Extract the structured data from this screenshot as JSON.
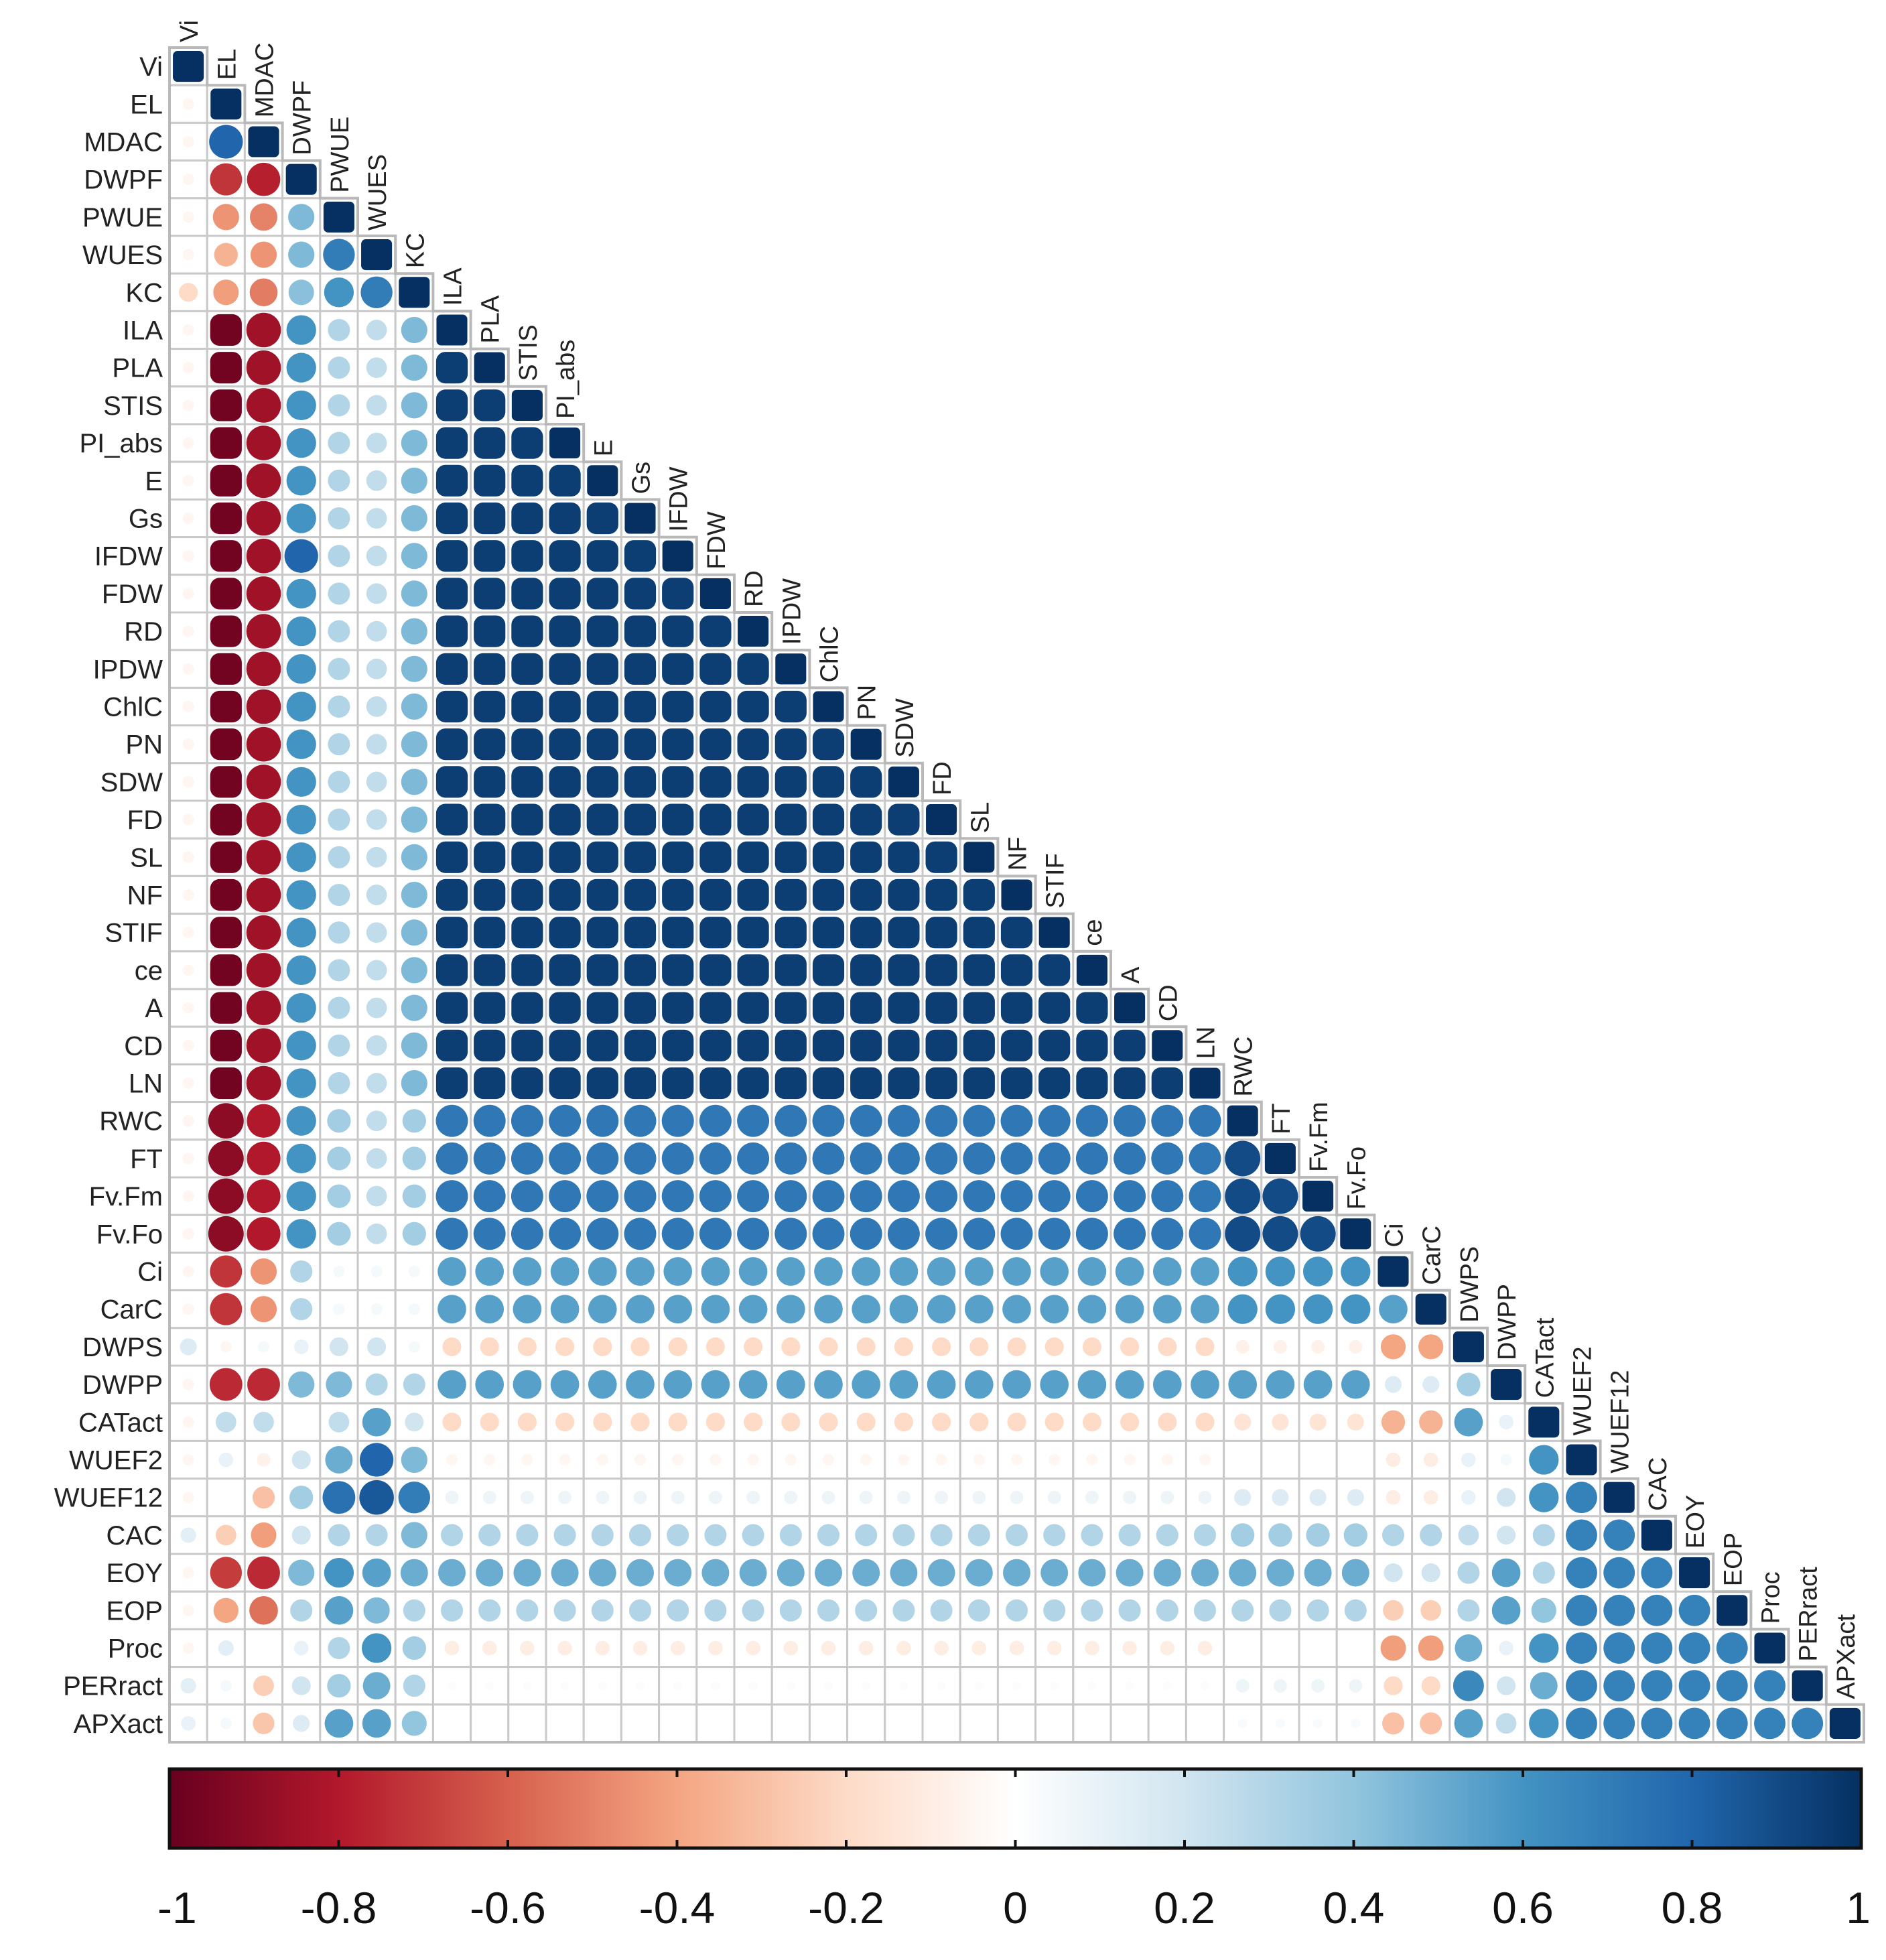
{
  "chart_data": {
    "type": "heatmap",
    "subtype": "correlation-matrix-lower-triangle",
    "title": "",
    "variables": [
      "Vi",
      "EL",
      "MDAC",
      "DWPF",
      "PWUE",
      "WUES",
      "KC",
      "ILA",
      "PLA",
      "STIS",
      "PI_abs",
      "E",
      "Gs",
      "IFDW",
      "FDW",
      "RD",
      "IPDW",
      "ChlC",
      "PN",
      "SDW",
      "FD",
      "SL",
      "NF",
      "STIF",
      "ce",
      "A",
      "CD",
      "LN",
      "RWC",
      "FT",
      "Fv.Fm",
      "Fv.Fo",
      "Ci",
      "CarC",
      "DWPS",
      "DWPP",
      "CATact",
      "WUEF2",
      "WUEF12",
      "CAC",
      "EOY",
      "EOP",
      "Proc",
      "PERract",
      "APXact"
    ],
    "groups": {
      "A": [
        "ILA",
        "PLA",
        "STIS",
        "PI_abs",
        "E",
        "Gs",
        "IFDW",
        "FDW",
        "RD",
        "IPDW",
        "ChlC",
        "PN",
        "SDW",
        "FD",
        "SL",
        "NF",
        "STIF",
        "ce",
        "A",
        "CD",
        "LN"
      ],
      "B": [
        "RWC",
        "FT",
        "Fv.Fm",
        "Fv.Fo"
      ],
      "C": [
        "Ci",
        "CarC"
      ],
      "S": [
        "WUEF2",
        "WUEF12",
        "CAC",
        "EOY",
        "EOP",
        "Proc",
        "PERract",
        "APXact"
      ]
    },
    "correlation_rules_estimated": {
      "Vi": {
        "default": -0.05,
        "DWPS": 0.15,
        "CAC": 0.12,
        "PERract": 0.12,
        "APXact": 0.1,
        "KC": -0.2
      },
      "EL": {
        "A": -0.97,
        "B": -0.9,
        "C": -0.72,
        "MDAC": 0.8,
        "DWPF": -0.72,
        "PWUE": -0.45,
        "WUES": -0.35,
        "KC": -0.42,
        "DWPP": -0.75,
        "EOY": -0.7,
        "EOP": -0.4,
        "CAC": -0.25,
        "CATact": 0.25,
        "DWPS": -0.05,
        "WUEF2": 0.1,
        "WUEF12": 0.0,
        "Proc": 0.12,
        "PERract": 0.05,
        "APXact": 0.05
      },
      "MDAC": {
        "A": -0.85,
        "B": -0.8,
        "C": -0.45,
        "DWPF": -0.78,
        "PWUE": -0.5,
        "WUES": -0.45,
        "KC": -0.52,
        "DWPP": -0.75,
        "EOY": -0.75,
        "EOP": -0.55,
        "CAC": -0.42,
        "CATact": 0.25,
        "DWPS": 0.05,
        "WUEF2": -0.08,
        "WUEF12": -0.3,
        "Proc": 0.0,
        "PERract": -0.25,
        "APXact": -0.28
      },
      "DWPF": {
        "A": 0.6,
        "B": 0.6,
        "C": 0.3,
        "PWUE": 0.45,
        "WUES": 0.45,
        "KC": 0.42,
        "IFDW": 0.8,
        "DWPP": 0.45,
        "EOY": 0.45,
        "EOP": 0.3,
        "CAC": 0.2,
        "CATact": 0.0,
        "DWPS": 0.1,
        "WUEF2": 0.2,
        "WUEF12": 0.35,
        "Proc": 0.1,
        "PERract": 0.2,
        "APXact": 0.15
      },
      "PWUE": {
        "A": 0.3,
        "B": 0.35,
        "C": 0.05,
        "WUES": 0.7,
        "KC": 0.6,
        "DWPP": 0.45,
        "EOY": 0.6,
        "EOP": 0.55,
        "CAC": 0.3,
        "CATact": 0.25,
        "DWPS": 0.2,
        "WUEF2": 0.5,
        "WUEF12": 0.75,
        "Proc": 0.3,
        "PERract": 0.35,
        "APXact": 0.55
      },
      "WUES": {
        "A": 0.25,
        "B": 0.25,
        "C": 0.05,
        "KC": 0.7,
        "DWPP": 0.3,
        "EOY": 0.55,
        "EOP": 0.45,
        "CAC": 0.3,
        "CATact": 0.55,
        "DWPS": 0.2,
        "WUEF2": 0.8,
        "WUEF12": 0.85,
        "Proc": 0.6,
        "PERract": 0.5,
        "APXact": 0.55
      },
      "KC": {
        "A": 0.45,
        "B": 0.35,
        "C": 0.05,
        "DWPP": 0.3,
        "EOY": 0.5,
        "EOP": 0.3,
        "CAC": 0.45,
        "CATact": 0.2,
        "DWPS": 0.05,
        "WUEF2": 0.45,
        "WUEF12": 0.7,
        "Proc": 0.35,
        "PERract": 0.3,
        "APXact": 0.4
      },
      "A": {
        "A": 0.95,
        "B": 0.72,
        "C": 0.55,
        "DWPS": -0.2,
        "DWPP": 0.55,
        "CATact": -0.2,
        "WUEF2": -0.05,
        "WUEF12": 0.08,
        "CAC": 0.3,
        "EOY": 0.5,
        "EOP": 0.3,
        "Proc": -0.1,
        "PERract": 0.02,
        "APXact": 0.0
      },
      "B": {
        "B": 0.9,
        "C": 0.6,
        "DWPS": -0.08,
        "DWPP": 0.55,
        "CATact": -0.15,
        "WUEF2": 0.0,
        "WUEF12": 0.15,
        "CAC": 0.35,
        "EOY": 0.5,
        "EOP": 0.3,
        "Proc": 0.0,
        "PERract": 0.08,
        "APXact": 0.03
      },
      "C": {
        "C": 0.55,
        "DWPS": -0.4,
        "DWPP": 0.15,
        "CATact": -0.35,
        "WUEF2": -0.1,
        "WUEF12": -0.1,
        "CAC": 0.3,
        "EOY": 0.2,
        "EOP": -0.25,
        "Proc": -0.42,
        "PERract": -0.2,
        "APXact": -0.3
      },
      "DWPS": {
        "DWPP": 0.35,
        "CATact": 0.55,
        "WUEF2": 0.1,
        "WUEF12": 0.1,
        "CAC": 0.25,
        "EOY": 0.3,
        "EOP": 0.3,
        "Proc": 0.5,
        "PERract": 0.65,
        "APXact": 0.55
      },
      "DWPP": {
        "CATact": 0.1,
        "WUEF2": 0.05,
        "WUEF12": 0.2,
        "CAC": 0.2,
        "EOY": 0.55,
        "EOP": 0.55,
        "Proc": 0.1,
        "PERract": 0.2,
        "APXact": 0.25
      },
      "CATact": {
        "WUEF2": 0.6,
        "WUEF12": 0.6,
        "CAC": 0.3,
        "EOY": 0.3,
        "EOP": 0.4,
        "Proc": 0.6,
        "PERract": 0.5,
        "APXact": 0.6
      },
      "S": {
        "S": 0.68
      }
    },
    "colorbar": {
      "min": -1,
      "max": 1,
      "ticks": [
        -1,
        -0.8,
        -0.6,
        -0.4,
        -0.2,
        0,
        0.2,
        0.4,
        0.6,
        0.8,
        1
      ],
      "tick_labels": [
        "-1",
        "-0.8",
        "-0.6",
        "-0.4",
        "-0.2",
        "0",
        "0.2",
        "0.4",
        "0.6",
        "0.8",
        "1"
      ],
      "colors": [
        "#67001f",
        "#b2182b",
        "#d6604d",
        "#f4a582",
        "#fddbc7",
        "#ffffff",
        "#d1e5f0",
        "#92c5de",
        "#4393c3",
        "#2166ac",
        "#053061"
      ]
    }
  }
}
